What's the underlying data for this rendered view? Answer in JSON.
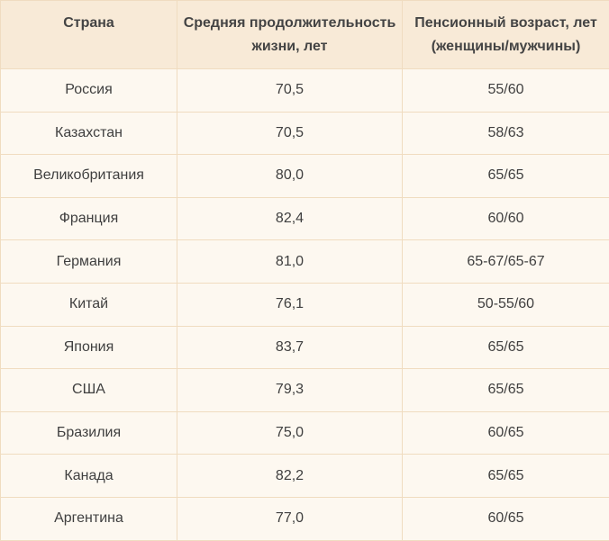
{
  "table": {
    "headers": [
      "Страна",
      "Средняя продолжительность жизни, лет",
      "Пенсионный возраст, лет (женщины/мужчины)"
    ],
    "rows": [
      [
        "Россия",
        "70,5",
        "55/60"
      ],
      [
        "Казахстан",
        "70,5",
        "58/63"
      ],
      [
        "Великобритания",
        "80,0",
        "65/65"
      ],
      [
        "Франция",
        "82,4",
        "60/60"
      ],
      [
        "Германия",
        "81,0",
        "65-67/65-67"
      ],
      [
        "Китай",
        "76,1",
        "50-55/60"
      ],
      [
        "Япония",
        "83,7",
        "65/65"
      ],
      [
        "США",
        "79,3",
        "65/65"
      ],
      [
        "Бразилия",
        "75,0",
        "60/65"
      ],
      [
        "Канада",
        "82,2",
        "65/65"
      ],
      [
        "Аргентина",
        "77,0",
        "60/65"
      ]
    ]
  }
}
